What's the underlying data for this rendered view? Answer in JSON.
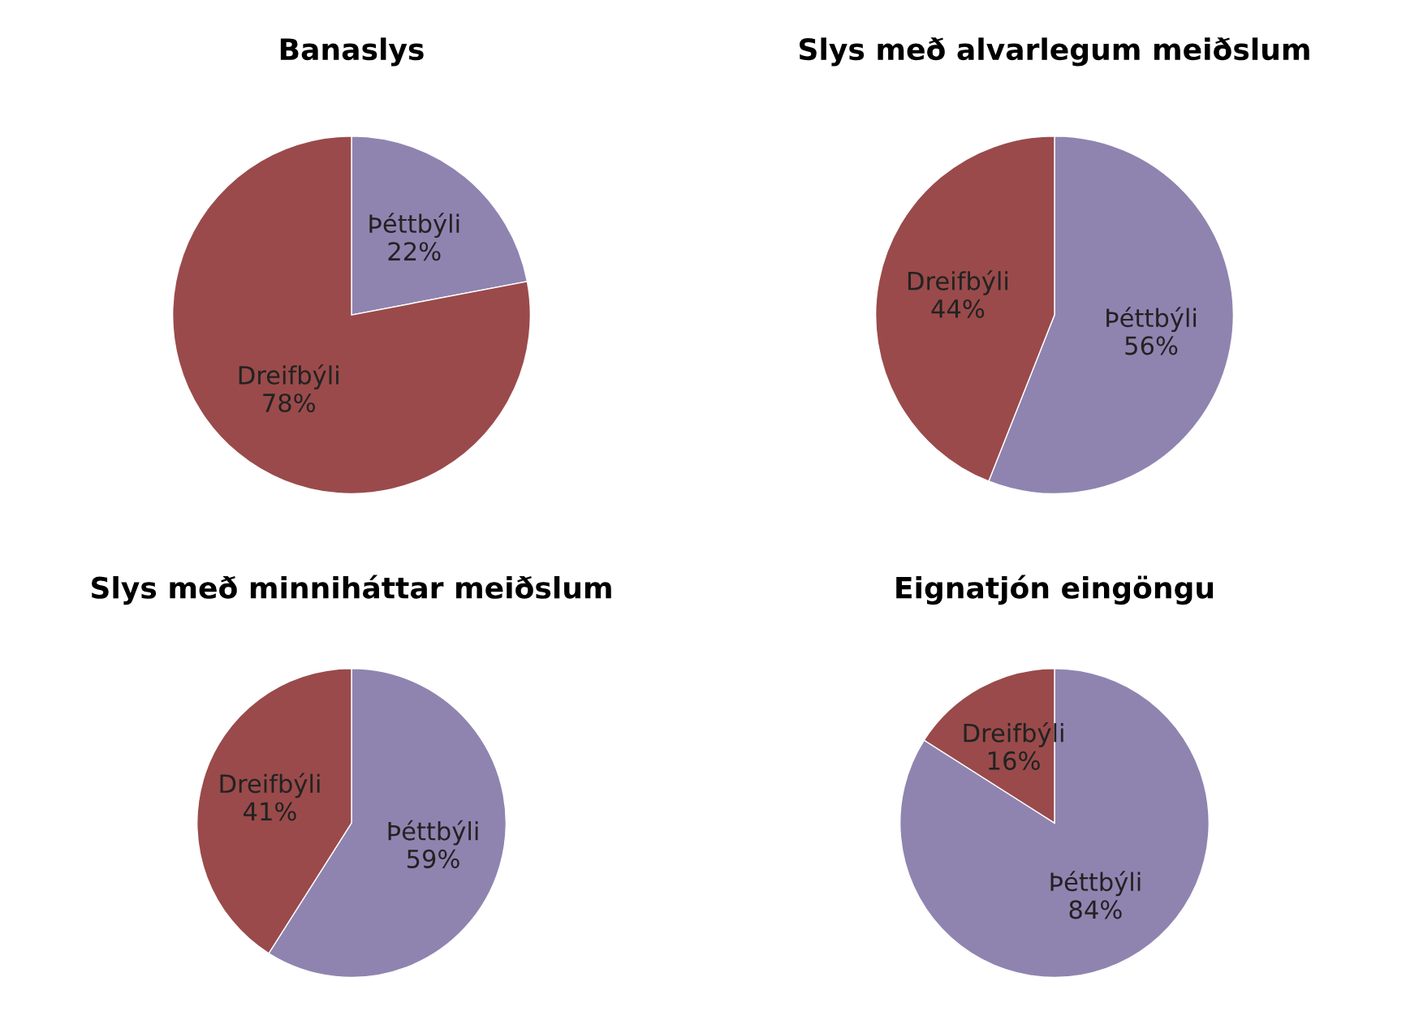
{
  "chart_data": [
    {
      "type": "pie",
      "title": "Banaslys",
      "categories": [
        "Þéttbýli",
        "Dreifbýli"
      ],
      "values": [
        22,
        78
      ],
      "value_labels": [
        "22%",
        "78%"
      ],
      "colors": [
        "#8f84b0",
        "#9a4a4a"
      ]
    },
    {
      "type": "pie",
      "title": "Slys með alvarlegum meiðslum",
      "categories": [
        "Þéttbýli",
        "Dreifbýli"
      ],
      "values": [
        56,
        44
      ],
      "value_labels": [
        "56%",
        "44%"
      ],
      "colors": [
        "#8f84b0",
        "#9a4a4a"
      ]
    },
    {
      "type": "pie",
      "title": "Slys með minniháttar meiðslum",
      "categories": [
        "Þéttbýli",
        "Dreifbýli"
      ],
      "values": [
        59,
        41
      ],
      "value_labels": [
        "59%",
        "41%"
      ],
      "colors": [
        "#8f84b0",
        "#9a4a4a"
      ]
    },
    {
      "type": "pie",
      "title": "Eignatjón eingöngu",
      "categories": [
        "Þéttbýli",
        "Dreifbýli"
      ],
      "values": [
        84,
        16
      ],
      "value_labels": [
        "84%",
        "16%"
      ],
      "colors": [
        "#8f84b0",
        "#9a4a4a"
      ]
    }
  ]
}
